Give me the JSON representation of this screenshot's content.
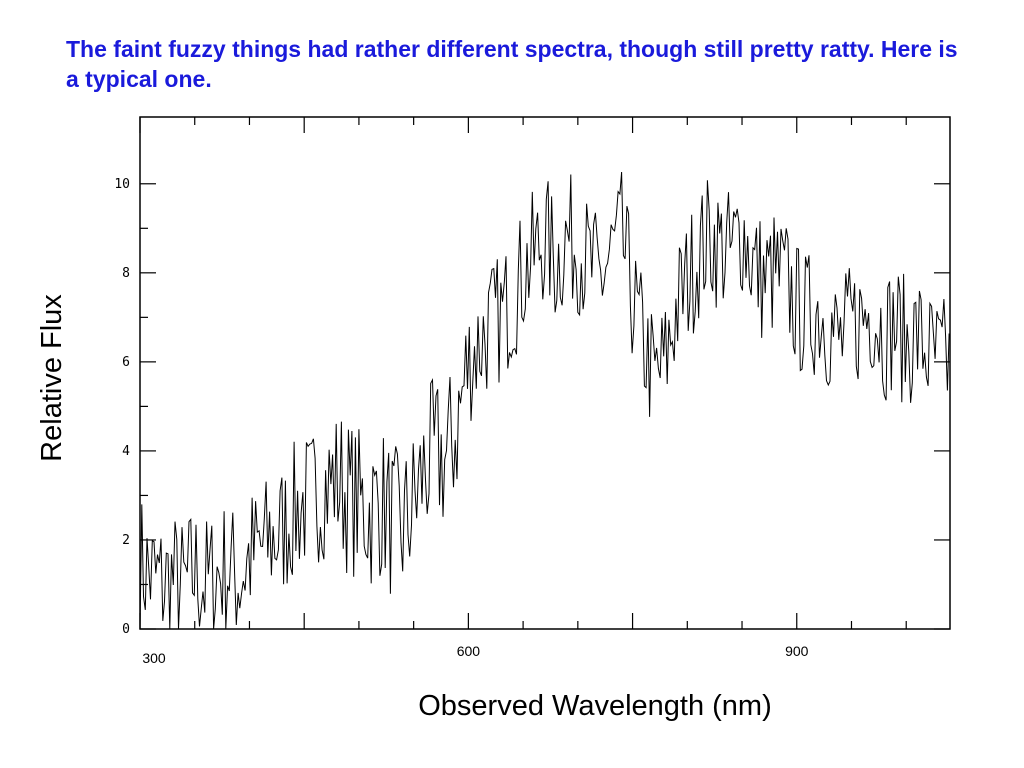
{
  "slide": {
    "title": "The faint fuzzy things had rather different spectra, though still pretty ratty. Here is a typical one."
  },
  "chart_data": {
    "type": "line",
    "xlabel": "Observed Wavelength (nm)",
    "ylabel": "Relative Flux",
    "xlim": [
      300,
      1040
    ],
    "ylim": [
      0,
      11.5
    ],
    "x_ticks": [
      300,
      600,
      900
    ],
    "y_ticks": [
      0,
      2,
      4,
      6,
      8,
      10
    ],
    "grid": false,
    "line_color": "#000000",
    "series": [
      {
        "x": [
          300,
          310,
          320,
          330,
          340,
          350,
          360,
          370,
          380,
          390,
          400,
          410,
          420,
          430,
          440,
          450,
          460,
          470,
          480,
          490,
          500,
          510,
          520,
          530,
          540,
          550,
          560,
          570,
          580,
          590,
          600,
          610,
          620,
          630,
          640,
          650,
          660,
          670,
          680,
          690,
          700,
          710,
          720,
          730,
          740,
          750,
          760,
          770,
          780,
          790,
          800,
          810,
          820,
          830,
          840,
          850,
          860,
          870,
          880,
          890,
          900,
          910,
          920,
          930,
          940,
          950,
          960,
          970,
          980,
          990,
          1000,
          1010,
          1020,
          1030,
          1040
        ],
        "y": [
          1.5,
          1.2,
          1.0,
          1.1,
          0.9,
          1.3,
          1.0,
          1.2,
          1.4,
          1.1,
          1.6,
          1.8,
          2.0,
          2.2,
          2.6,
          2.8,
          3.0,
          3.2,
          3.4,
          3.0,
          2.8,
          2.6,
          2.9,
          2.4,
          2.2,
          2.8,
          3.6,
          3.9,
          3.8,
          4.6,
          6.0,
          6.4,
          6.8,
          7.0,
          7.4,
          8.0,
          8.4,
          8.8,
          8.2,
          8.8,
          8.6,
          8.2,
          7.8,
          8.4,
          8.8,
          7.4,
          6.4,
          5.6,
          6.0,
          7.2,
          7.8,
          8.4,
          8.8,
          8.6,
          8.4,
          9.0,
          8.2,
          7.8,
          8.0,
          7.8,
          7.2,
          7.0,
          7.2,
          6.8,
          6.4,
          6.8,
          7.0,
          7.2,
          6.6,
          6.8,
          6.4,
          6.6,
          6.2,
          6.0,
          6.0
        ]
      }
    ]
  }
}
